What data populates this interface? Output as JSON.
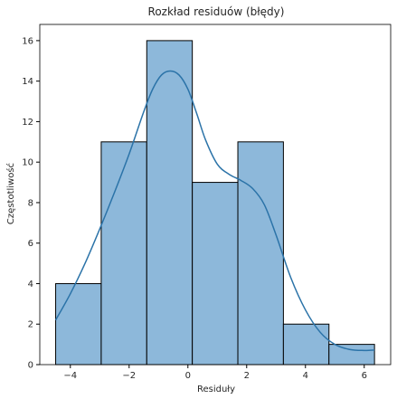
{
  "chart_data": {
    "type": "bar",
    "title": "Rozkład residuów (błędy)",
    "xlabel": "Residuły",
    "ylabel": "Częstotliwość",
    "xlim": [
      -5.04,
      6.9
    ],
    "ylim": [
      0,
      16.8
    ],
    "xticks": [
      -4,
      -2,
      0,
      2,
      4,
      6
    ],
    "yticks": [
      0,
      2,
      4,
      6,
      8,
      10,
      12,
      14,
      16
    ],
    "bins": [
      {
        "x0": -4.5,
        "x1": -2.95,
        "count": 4
      },
      {
        "x0": -2.95,
        "x1": -1.4,
        "count": 11
      },
      {
        "x0": -1.4,
        "x1": 0.15,
        "count": 16
      },
      {
        "x0": 0.15,
        "x1": 1.7,
        "count": 9
      },
      {
        "x0": 1.7,
        "x1": 3.25,
        "count": 11
      },
      {
        "x0": 3.25,
        "x1": 4.8,
        "count": 2
      },
      {
        "x0": 4.8,
        "x1": 6.35,
        "count": 1
      }
    ],
    "kde": {
      "x": [
        -4.5,
        -4.0,
        -3.5,
        -3.0,
        -2.5,
        -2.0,
        -1.5,
        -1.2,
        -0.9,
        -0.6,
        -0.3,
        0.0,
        0.3,
        0.6,
        1.0,
        1.4,
        1.8,
        2.2,
        2.6,
        3.0,
        3.5,
        4.0,
        4.5,
        5.0,
        5.5,
        6.0,
        6.35
      ],
      "y": [
        2.2,
        3.5,
        5.0,
        6.7,
        8.5,
        10.4,
        12.5,
        13.6,
        14.3,
        14.5,
        14.3,
        13.6,
        12.4,
        11.1,
        9.9,
        9.4,
        9.1,
        8.7,
        7.9,
        6.4,
        4.3,
        2.7,
        1.6,
        1.0,
        0.75,
        0.7,
        0.72
      ]
    },
    "colors": {
      "bar_fill": "#8db8da",
      "bar_edge": "#000000",
      "kde_line": "#2b73a8",
      "axis": "#000000"
    },
    "grid": false,
    "legend": "none"
  }
}
